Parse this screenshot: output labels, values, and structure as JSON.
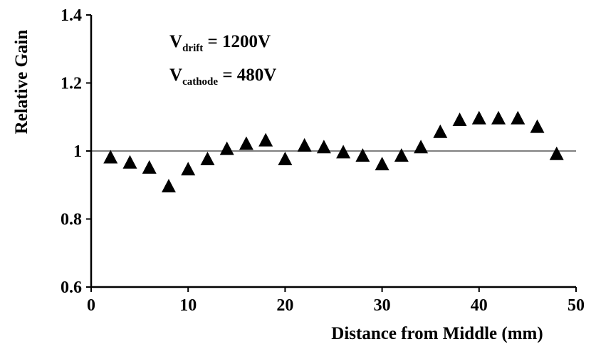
{
  "chart_data": {
    "type": "scatter",
    "xlabel": "Distance from Middle (mm)",
    "ylabel": "Relative Gain",
    "xlim": [
      0,
      50
    ],
    "ylim": [
      0.6,
      1.4
    ],
    "x_ticks": [
      0,
      10,
      20,
      30,
      40,
      50
    ],
    "x_tick_labels": [
      "0",
      "10",
      "20",
      "30",
      "40",
      "50"
    ],
    "y_ticks": [
      0.6,
      0.8,
      1.0,
      1.2,
      1.4
    ],
    "y_tick_labels": [
      "0.6",
      "0.8",
      "1",
      "1.2",
      "1.4"
    ],
    "reference_line": 1.0,
    "grid": false,
    "marker": "triangle",
    "marker_color": "#000000",
    "reference_line_color": "#808080",
    "annotations": [
      {
        "main": "V",
        "sub": "drift",
        "rest": " = 1200V"
      },
      {
        "main": "V",
        "sub": "cathode",
        "rest": " = 480V"
      }
    ],
    "series": [
      {
        "x": [
          2,
          4,
          6,
          8,
          10,
          12,
          14,
          16,
          18,
          20,
          22,
          24,
          26,
          28,
          30,
          32,
          34,
          36,
          38,
          40,
          42,
          44,
          46,
          48
        ],
        "y": [
          0.98,
          0.965,
          0.95,
          0.895,
          0.945,
          0.975,
          1.005,
          1.02,
          1.03,
          0.975,
          1.015,
          1.01,
          0.995,
          0.985,
          0.96,
          0.985,
          1.01,
          1.055,
          1.09,
          1.095,
          1.095,
          1.095,
          1.07,
          0.99
        ]
      }
    ]
  }
}
